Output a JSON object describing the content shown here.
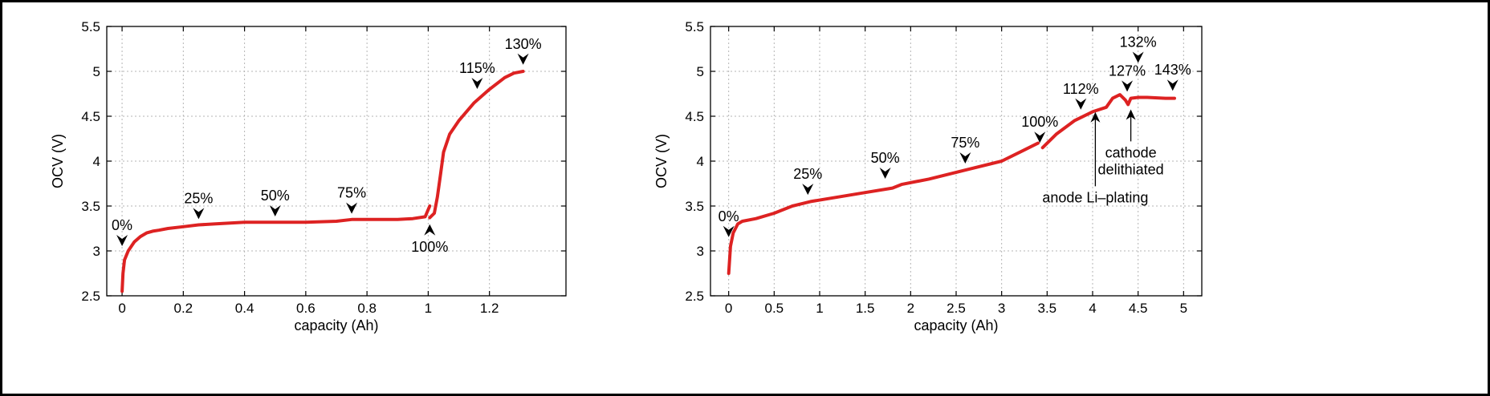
{
  "chart_data": [
    {
      "type": "line",
      "xlabel": "capacity (Ah)",
      "ylabel": "OCV (V)",
      "xlim": [
        -0.05,
        1.45
      ],
      "ylim": [
        2.5,
        5.5
      ],
      "xticks": [
        0,
        0.2,
        0.4,
        0.6,
        0.8,
        1,
        1.2
      ],
      "xtick_labels": [
        "0",
        "0.2",
        "0.4",
        "0.6",
        "0.8",
        "1",
        "1.2"
      ],
      "yticks": [
        2.5,
        3,
        3.5,
        4,
        4.5,
        5,
        5.5
      ],
      "ytick_labels": [
        "2.5",
        "3",
        "3.5",
        "4",
        "4.5",
        "5",
        "5.5"
      ],
      "grid": true,
      "line_color": "#dd2222",
      "series": [
        {
          "segments": [
            [
              [
                0,
                2.55
              ],
              [
                0.003,
                2.75
              ],
              [
                0.008,
                2.9
              ],
              [
                0.02,
                3.0
              ],
              [
                0.04,
                3.1
              ],
              [
                0.06,
                3.16
              ],
              [
                0.08,
                3.2
              ],
              [
                0.1,
                3.22
              ],
              [
                0.12,
                3.23
              ],
              [
                0.15,
                3.25
              ],
              [
                0.2,
                3.27
              ],
              [
                0.25,
                3.29
              ],
              [
                0.3,
                3.3
              ],
              [
                0.4,
                3.32
              ],
              [
                0.5,
                3.32
              ],
              [
                0.6,
                3.32
              ],
              [
                0.7,
                3.33
              ],
              [
                0.75,
                3.35
              ],
              [
                0.8,
                3.35
              ],
              [
                0.9,
                3.35
              ],
              [
                0.95,
                3.36
              ],
              [
                0.99,
                3.38
              ],
              [
                1.005,
                3.5
              ]
            ],
            [
              [
                1.005,
                3.37
              ],
              [
                1.02,
                3.42
              ],
              [
                1.03,
                3.6
              ],
              [
                1.04,
                3.85
              ],
              [
                1.05,
                4.1
              ],
              [
                1.07,
                4.3
              ],
              [
                1.1,
                4.45
              ],
              [
                1.15,
                4.65
              ],
              [
                1.2,
                4.8
              ],
              [
                1.25,
                4.93
              ],
              [
                1.28,
                4.98
              ],
              [
                1.31,
                5.0
              ]
            ]
          ]
        }
      ],
      "annotations": [
        {
          "text": "0%",
          "x": 0,
          "y": 3.0,
          "dir": "down"
        },
        {
          "text": "25%",
          "x": 0.25,
          "y": 3.3,
          "dir": "down"
        },
        {
          "text": "50%",
          "x": 0.5,
          "y": 3.33,
          "dir": "down"
        },
        {
          "text": "75%",
          "x": 0.75,
          "y": 3.36,
          "dir": "down"
        },
        {
          "text": "100%",
          "x": 1.005,
          "y": 3.35,
          "dir": "up"
        },
        {
          "text": "115%",
          "x": 1.16,
          "y": 4.75,
          "dir": "down"
        },
        {
          "text": "130%",
          "x": 1.31,
          "y": 5.02,
          "dir": "down"
        }
      ]
    },
    {
      "type": "line",
      "xlabel": "capacity (Ah)",
      "ylabel": "OCV (V)",
      "xlim": [
        -0.2,
        5.2
      ],
      "ylim": [
        2.5,
        5.5
      ],
      "xticks": [
        0,
        0.5,
        1,
        1.5,
        2,
        2.5,
        3,
        3.5,
        4,
        4.5,
        5
      ],
      "xtick_labels": [
        "0",
        "0.5",
        "1",
        "1.5",
        "2",
        "2.5",
        "3",
        "3.5",
        "4",
        "4.5",
        "5"
      ],
      "yticks": [
        2.5,
        3,
        3.5,
        4,
        4.5,
        5,
        5.5
      ],
      "ytick_labels": [
        "2.5",
        "3",
        "3.5",
        "4",
        "4.5",
        "5",
        "5.5"
      ],
      "grid": true,
      "line_color": "#dd2222",
      "series": [
        {
          "segments": [
            [
              [
                0,
                2.75
              ],
              [
                0.02,
                3.05
              ],
              [
                0.05,
                3.2
              ],
              [
                0.1,
                3.3
              ],
              [
                0.15,
                3.33
              ],
              [
                0.3,
                3.36
              ],
              [
                0.5,
                3.42
              ],
              [
                0.7,
                3.5
              ],
              [
                0.9,
                3.55
              ],
              [
                1.2,
                3.6
              ],
              [
                1.5,
                3.65
              ],
              [
                1.8,
                3.7
              ],
              [
                1.9,
                3.74
              ],
              [
                2.2,
                3.8
              ],
              [
                2.6,
                3.9
              ],
              [
                3.0,
                4.0
              ],
              [
                3.4,
                4.2
              ]
            ],
            [
              [
                3.45,
                4.15
              ],
              [
                3.6,
                4.3
              ],
              [
                3.8,
                4.45
              ],
              [
                4.0,
                4.55
              ],
              [
                4.15,
                4.6
              ],
              [
                4.22,
                4.7
              ],
              [
                4.3,
                4.74
              ],
              [
                4.36,
                4.68
              ],
              [
                4.39,
                4.63
              ],
              [
                4.42,
                4.7
              ],
              [
                4.5,
                4.71
              ],
              [
                4.6,
                4.71
              ],
              [
                4.8,
                4.7
              ],
              [
                4.9,
                4.7
              ]
            ]
          ]
        }
      ],
      "annotations": [
        {
          "text": "0%",
          "x": 0,
          "y": 3.1,
          "dir": "down"
        },
        {
          "text": "25%",
          "x": 0.87,
          "y": 3.57,
          "dir": "down"
        },
        {
          "text": "50%",
          "x": 1.72,
          "y": 3.75,
          "dir": "down"
        },
        {
          "text": "75%",
          "x": 2.6,
          "y": 3.92,
          "dir": "down"
        },
        {
          "text": "100%",
          "x": 3.42,
          "y": 4.15,
          "dir": "down"
        },
        {
          "text": "112%",
          "x": 3.87,
          "y": 4.52,
          "dir": "down"
        },
        {
          "text": "127%",
          "x": 4.38,
          "y": 4.72,
          "dir": "down"
        },
        {
          "text": "132%",
          "x": 4.5,
          "y": 5.04,
          "dir": "down"
        },
        {
          "text": "143%",
          "x": 4.88,
          "y": 4.73,
          "dir": "down"
        }
      ],
      "callouts": [
        {
          "text_lines": [
            "anode Li–plating"
          ],
          "x": 4.03,
          "y": 4.6,
          "label_y": 3.72
        },
        {
          "text_lines": [
            "cathode",
            "delithiated"
          ],
          "x": 4.42,
          "y": 4.63,
          "label_y": 4.22
        }
      ]
    }
  ]
}
